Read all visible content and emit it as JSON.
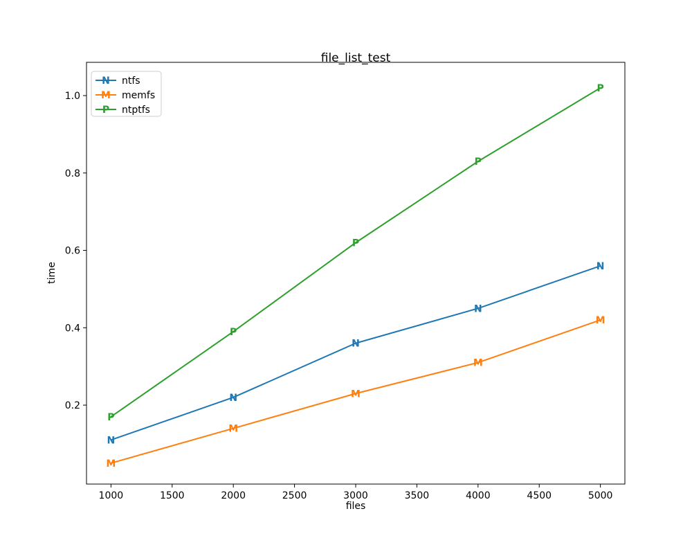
{
  "figure": {
    "background_color": "#ffffff",
    "text_color": "#000000",
    "spine_color": "#000000",
    "legend_border_color": "#cccccc"
  },
  "chart_data": {
    "type": "line",
    "title": "file_list_test",
    "xlabel": "files",
    "ylabel": "time",
    "x": [
      1000,
      2000,
      3000,
      4000,
      5000
    ],
    "series": [
      {
        "name": "ntfs",
        "marker": "N",
        "color": "#1f77b4",
        "values": [
          0.11,
          0.22,
          0.36,
          0.45,
          0.56
        ]
      },
      {
        "name": "memfs",
        "marker": "M",
        "color": "#ff7f0e",
        "values": [
          0.05,
          0.14,
          0.23,
          0.31,
          0.42
        ]
      },
      {
        "name": "ntptfs",
        "marker": "P",
        "color": "#2ca02c",
        "values": [
          0.17,
          0.39,
          0.62,
          0.83,
          1.02
        ]
      }
    ],
    "xlim": [
      800,
      5200
    ],
    "ylim": [
      -0.004,
      1.086
    ],
    "xticks": [
      1000,
      1500,
      2000,
      2500,
      3000,
      3500,
      4000,
      4500,
      5000
    ],
    "yticks": [
      0.2,
      0.4,
      0.6,
      0.8,
      1.0
    ],
    "grid": false,
    "legend_position": "upper left",
    "legend_labels": [
      "ntfs",
      "memfs",
      "ntptfs"
    ]
  }
}
